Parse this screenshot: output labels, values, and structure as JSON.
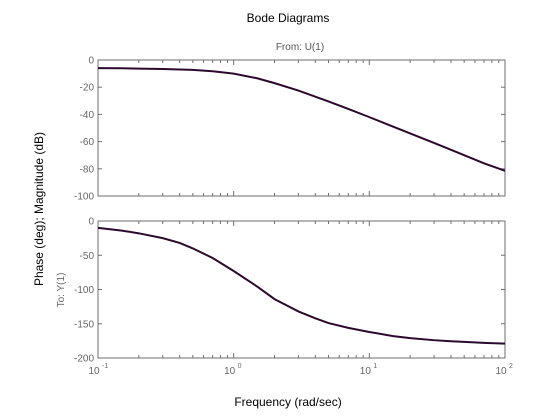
{
  "figure": {
    "title": "Bode Diagrams",
    "from_label": "From: U(1)",
    "to_label": "To: Y(1)",
    "ylabel": "Phase (deg); Magnitude (dB)",
    "xlabel": "Frequency (rad/sec)"
  },
  "chart_data": [
    {
      "type": "line",
      "panel": "magnitude",
      "title": "",
      "xlabel": "",
      "ylabel": "",
      "xscale": "log",
      "xlim": [
        0.1,
        100
      ],
      "ylim": [
        -100,
        0
      ],
      "yticks": [
        0,
        -20,
        -40,
        -60,
        -80,
        -100
      ],
      "ytick_labels": [
        "0",
        "-20",
        "-40",
        "-60",
        "-80",
        "-100"
      ],
      "grid": false,
      "color": "#2d0a2d",
      "series": [
        {
          "x": [
            0.1,
            0.15,
            0.2,
            0.3,
            0.4,
            0.5,
            0.7,
            1.0,
            1.5,
            2.0,
            3.0,
            4.0,
            5.0,
            7.0,
            10.0,
            15.0,
            20.0,
            30.0,
            40.0,
            50.0,
            70.0,
            100.0
          ],
          "values": [
            -6.0,
            -6.1,
            -6.3,
            -6.6,
            -7.0,
            -7.3,
            -8.3,
            -10.0,
            -13.5,
            -17.0,
            -22.5,
            -27.0,
            -30.5,
            -36.0,
            -42.0,
            -49.0,
            -54.0,
            -61.0,
            -66.0,
            -70.0,
            -76.0,
            -81.5
          ]
        }
      ]
    },
    {
      "type": "line",
      "panel": "phase",
      "title": "",
      "xlabel": "",
      "ylabel": "",
      "xscale": "log",
      "xlim": [
        0.1,
        100
      ],
      "ylim": [
        -200,
        0
      ],
      "yticks": [
        0,
        -50,
        -100,
        -150,
        -200
      ],
      "ytick_labels": [
        "0",
        "-50",
        "-100",
        "-150",
        "-200"
      ],
      "xticks": [
        0.1,
        1,
        10,
        100
      ],
      "xtick_labels": [
        {
          "base": "10",
          "exp": "-1"
        },
        {
          "base": "10",
          "exp": "0"
        },
        {
          "base": "10",
          "exp": "1"
        },
        {
          "base": "10",
          "exp": "2"
        }
      ],
      "grid": false,
      "color": "#2d0a2d",
      "series": [
        {
          "x": [
            0.1,
            0.15,
            0.2,
            0.3,
            0.4,
            0.5,
            0.7,
            1.0,
            1.5,
            2.0,
            3.0,
            4.0,
            5.0,
            7.0,
            10.0,
            15.0,
            20.0,
            30.0,
            40.0,
            50.0,
            70.0,
            100.0
          ],
          "values": [
            -10.0,
            -14.0,
            -18.0,
            -25.0,
            -32.0,
            -40.0,
            -54.0,
            -73.0,
            -96.0,
            -114.0,
            -132.0,
            -142.0,
            -149.0,
            -156.0,
            -162.0,
            -168.0,
            -171.0,
            -174.0,
            -175.5,
            -176.5,
            -178.0,
            -179.0
          ]
        }
      ]
    }
  ]
}
